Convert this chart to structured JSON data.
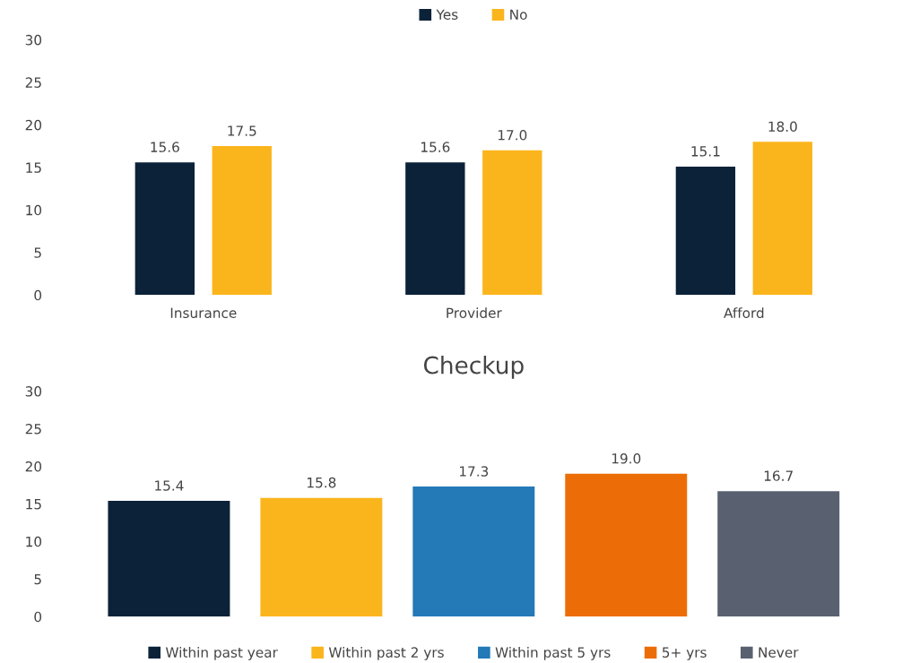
{
  "chart_data": [
    {
      "type": "bar",
      "categories": [
        "Insurance",
        "Provider",
        "Afford"
      ],
      "series": [
        {
          "name": "Yes",
          "color": "#0b2239",
          "values": [
            15.6,
            15.6,
            15.1
          ],
          "value_labels": [
            "15.6",
            "15.6",
            "15.1"
          ]
        },
        {
          "name": "No",
          "color": "#fbb51c",
          "values": [
            17.5,
            17.0,
            18.0
          ],
          "value_labels": [
            "17.5",
            "17.0",
            "18.0"
          ]
        }
      ],
      "ylim": [
        0,
        30
      ],
      "yticks": [
        0,
        5,
        10,
        15,
        20,
        25,
        30
      ],
      "legend": "top",
      "grid": false
    },
    {
      "type": "bar",
      "title": "Checkup",
      "categories": [
        null
      ],
      "series": [
        {
          "name": "Within past year",
          "color": "#0b2239",
          "values": [
            15.4
          ],
          "value_labels": [
            "15.4"
          ]
        },
        {
          "name": "Within past 2 yrs",
          "color": "#fbb51c",
          "values": [
            15.8
          ],
          "value_labels": [
            "15.8"
          ]
        },
        {
          "name": "Within past 5 yrs",
          "color": "#2479b7",
          "values": [
            17.3
          ],
          "value_labels": [
            "17.3"
          ]
        },
        {
          "name": "5+ yrs",
          "color": "#ec6d07",
          "values": [
            19.0
          ],
          "value_labels": [
            "19.0"
          ]
        },
        {
          "name": "Never",
          "color": "#596070",
          "values": [
            16.7
          ],
          "value_labels": [
            "16.7"
          ]
        }
      ],
      "ylim": [
        0,
        30
      ],
      "yticks": [
        0,
        5,
        10,
        15,
        20,
        25,
        30
      ],
      "legend": "bottom",
      "grid": false
    }
  ]
}
